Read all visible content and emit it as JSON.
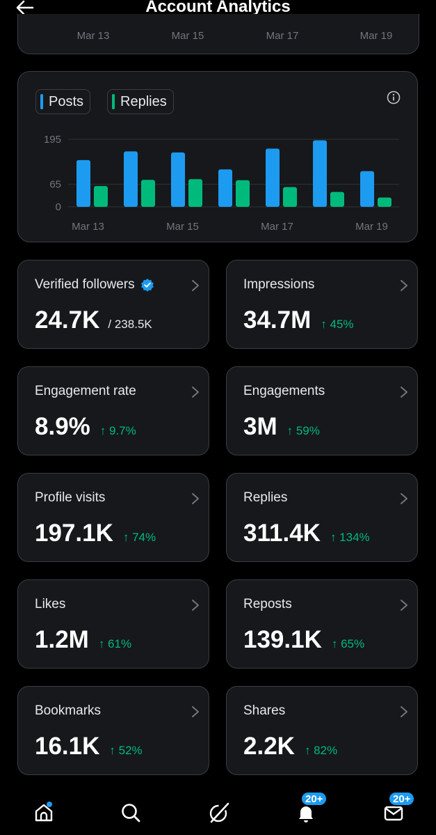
{
  "header": {
    "title": "Account Analytics"
  },
  "previous_chart": {
    "x_ticks": [
      "Mar 13",
      "Mar 15",
      "Mar 17",
      "Mar 19"
    ]
  },
  "chart_data": {
    "type": "bar",
    "categories": [
      "1",
      "2",
      "3",
      "4",
      "5",
      "6",
      "7"
    ],
    "x_tick_labels": [
      "Mar 13",
      "Mar 15",
      "Mar 17",
      "Mar 19"
    ],
    "y_ticks": [
      "195",
      "65",
      "0"
    ],
    "ylim": [
      0,
      195
    ],
    "series": [
      {
        "name": "Posts",
        "color": "#1d9bf0",
        "values": [
          135,
          160,
          157,
          108,
          168,
          192,
          103
        ]
      },
      {
        "name": "Replies",
        "color": "#00ba7c",
        "values": [
          60,
          78,
          80,
          77,
          57,
          43,
          27
        ]
      }
    ],
    "legend": "top-left"
  },
  "stats": [
    {
      "label": "Verified followers",
      "value": "24.7K",
      "sub": "/ 238.5K",
      "change": "",
      "verified_badge": true
    },
    {
      "label": "Impressions",
      "value": "34.7M",
      "sub": "",
      "change": "↑ 45%"
    },
    {
      "label": "Engagement rate",
      "value": "8.9%",
      "sub": "",
      "change": "↑ 9.7%"
    },
    {
      "label": "Engagements",
      "value": "3M",
      "sub": "",
      "change": "↑ 59%"
    },
    {
      "label": "Profile visits",
      "value": "197.1K",
      "sub": "",
      "change": "↑ 74%"
    },
    {
      "label": "Replies",
      "value": "311.4K",
      "sub": "",
      "change": "↑ 134%"
    },
    {
      "label": "Likes",
      "value": "1.2M",
      "sub": "",
      "change": "↑ 61%"
    },
    {
      "label": "Reposts",
      "value": "139.1K",
      "sub": "",
      "change": "↑ 65%"
    },
    {
      "label": "Bookmarks",
      "value": "16.1K",
      "sub": "",
      "change": "↑ 52%"
    },
    {
      "label": "Shares",
      "value": "2.2K",
      "sub": "",
      "change": "↑ 82%"
    }
  ],
  "nav": {
    "items": [
      "home-icon",
      "search-icon",
      "grok-icon",
      "bell-icon",
      "mail-icon"
    ],
    "notifications_badge": "20+",
    "messages_badge": "20+"
  },
  "colors": {
    "posts": "#1d9bf0",
    "replies": "#00ba7c",
    "positive_change": "#00ba7c",
    "card_bg": "#16181c"
  }
}
